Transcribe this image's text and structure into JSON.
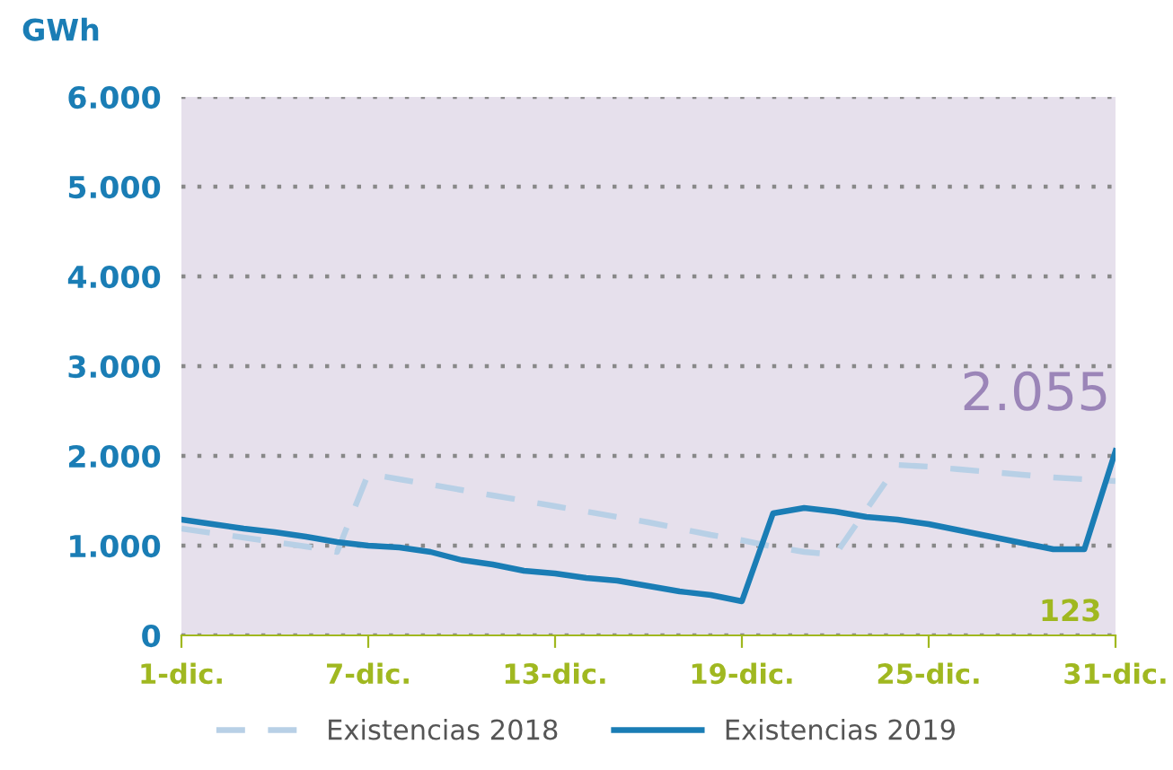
{
  "chart_data": {
    "type": "line",
    "ylabel": "GWh",
    "x": [
      1,
      2,
      3,
      4,
      5,
      6,
      7,
      8,
      9,
      10,
      11,
      12,
      13,
      14,
      15,
      16,
      17,
      18,
      19,
      20,
      21,
      22,
      23,
      24,
      25,
      26,
      27,
      28,
      29,
      30,
      31
    ],
    "series": [
      {
        "name": "Existencias 2018",
        "color": "#b8d0e6",
        "line_style": "dashed",
        "values": [
          1190,
          1140,
          1090,
          1040,
          990,
          930,
          1800,
          1740,
          1680,
          1620,
          1560,
          1500,
          1440,
          1380,
          1320,
          1260,
          1190,
          1120,
          1060,
          990,
          930,
          900,
          1400,
          1900,
          1880,
          1850,
          1820,
          1790,
          1760,
          1740,
          1720
        ]
      },
      {
        "name": "Existencias 2019",
        "color": "#1a7db5",
        "line_style": "solid",
        "values": [
          1290,
          1240,
          1190,
          1150,
          1100,
          1040,
          1000,
          980,
          930,
          840,
          790,
          720,
          690,
          640,
          610,
          550,
          490,
          450,
          380,
          1360,
          1420,
          1380,
          1320,
          1290,
          1240,
          1170,
          1100,
          1030,
          960,
          960,
          2055
        ]
      }
    ],
    "xlim": [
      1,
      31
    ],
    "xticks": [
      {
        "value": 1,
        "label": "1-dic."
      },
      {
        "value": 7,
        "label": "7-dic."
      },
      {
        "value": 13,
        "label": "13-dic."
      },
      {
        "value": 19,
        "label": "19-dic."
      },
      {
        "value": 25,
        "label": "25-dic."
      },
      {
        "value": 31,
        "label": "31-dic."
      }
    ],
    "ylim": [
      0,
      6000
    ],
    "yticks": [
      {
        "value": 0,
        "label": "0"
      },
      {
        "value": 1000,
        "label": "1.000"
      },
      {
        "value": 2000,
        "label": "2.000"
      },
      {
        "value": 3000,
        "label": "3.000"
      },
      {
        "value": 4000,
        "label": "4.000"
      },
      {
        "value": 5000,
        "label": "5.000"
      },
      {
        "value": 6000,
        "label": "6.000"
      }
    ],
    "grid": "y",
    "legend": "bottom",
    "marker": "none",
    "annotations": [
      {
        "text": "2.055",
        "x": 31,
        "y": 2055
      },
      "123"
    ]
  }
}
